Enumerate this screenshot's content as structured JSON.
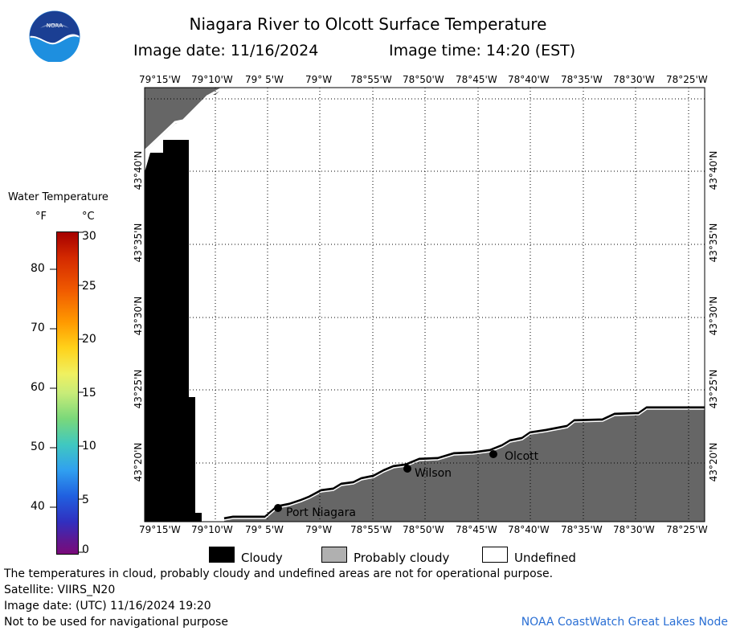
{
  "header": {
    "title": "Niagara River to Olcott Surface Temperature",
    "image_date": "Image date: 11/16/2024",
    "image_time": "Image time: 14:20 (EST)"
  },
  "logo": {
    "text": "NOAA",
    "color": "#1e74c8"
  },
  "map": {
    "lon_labels": [
      "79°15'W",
      "79°10'W",
      "79° 5'W",
      "79°W",
      "78°55'W",
      "78°50'W",
      "78°45'W",
      "78°40'W",
      "78°35'W",
      "78°30'W",
      "78°25'W"
    ],
    "lat_labels": [
      "43°40'N",
      "43°35'N",
      "43°30'N",
      "43°25'N",
      "43°20'N"
    ],
    "places": [
      {
        "name": "Port Niagara"
      },
      {
        "name": "Wilson"
      },
      {
        "name": "Olcott"
      }
    ],
    "colors": {
      "cloudy": "#000000",
      "probably_cloudy": "#666666",
      "undefined": "#ffffff",
      "grid": "#000000"
    }
  },
  "colorbar": {
    "title": "Water Temperature",
    "unit_f": "°F",
    "unit_c": "°C",
    "f_ticks": [
      "80",
      "70",
      "60",
      "50",
      "40"
    ],
    "c_ticks": [
      "30",
      "25",
      "20",
      "15",
      "10",
      "5",
      "0"
    ]
  },
  "legend": {
    "cloudy": "Cloudy",
    "probably_cloudy": "Probably cloudy",
    "undefined": "Undefined"
  },
  "notes": {
    "line1": "The temperatures in cloud, probably cloudy and undefined areas are not for operational purpose.",
    "line2": "Satellite: VIIRS_N20",
    "line3": "Image date: (UTC) 11/16/2024  19:20",
    "line4": "Not to be used for navigational purpose",
    "credit": "NOAA CoastWatch Great Lakes Node"
  }
}
